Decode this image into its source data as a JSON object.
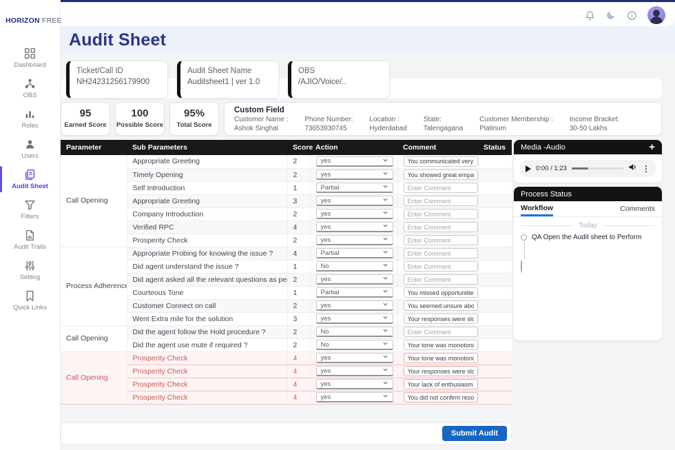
{
  "brand": {
    "bold": "HORIZON",
    "light": "FREE"
  },
  "page_title": "Audit Sheet",
  "sidebar": [
    {
      "label": "Dashboard",
      "icon": "dashboard-icon",
      "active": false
    },
    {
      "label": "OBS",
      "icon": "obs-icon",
      "active": false
    },
    {
      "label": "Roles",
      "icon": "roles-icon",
      "active": false
    },
    {
      "label": "Users",
      "icon": "users-icon",
      "active": false
    },
    {
      "label": "Audit Sheet",
      "icon": "audit-sheet-icon",
      "active": true
    },
    {
      "label": "Filters",
      "icon": "filters-icon",
      "active": false
    },
    {
      "label": "Audit Trails",
      "icon": "audit-trails-icon",
      "active": false
    },
    {
      "label": "Setting",
      "icon": "setting-icon",
      "active": false
    },
    {
      "label": "Quick Links",
      "icon": "quick-links-icon",
      "active": false
    }
  ],
  "topbar": {
    "icons": [
      "bell-icon",
      "dark-mode-icon",
      "info-icon"
    ]
  },
  "info_cards": [
    {
      "label": "Ticket/Call ID",
      "value": "NH24231256179900"
    },
    {
      "label": "Audit Sheet Name",
      "value": "Auditsheet1 | ver 1.0"
    },
    {
      "label": "OBS",
      "value": "/AJIO/Voice/.."
    }
  ],
  "score_cards": [
    {
      "value": "95",
      "label": "Earned Score"
    },
    {
      "value": "100",
      "label": "Possible Score"
    },
    {
      "value": "95%",
      "label": "Total Score"
    }
  ],
  "custom_field": {
    "title": "Custom Field",
    "fields": [
      {
        "label": "Customer Name :",
        "value": "Ashok Singhal"
      },
      {
        "label": "Phone Number:",
        "value": "73653930745"
      },
      {
        "label": "Location :",
        "value": "Hyderdabad"
      },
      {
        "label": "State:",
        "value": "Talengagana"
      },
      {
        "label": "Customer Membership :",
        "value": "Platinum"
      },
      {
        "label": "Income Bracket:",
        "value": "30-50 Lakhs"
      }
    ]
  },
  "table": {
    "columns": [
      "Parameter",
      "Sub Parameters",
      "Score",
      "Action",
      "Comment",
      "Status"
    ],
    "comment_placeholder": "Enter Comment",
    "groups": [
      {
        "parameter": "Call Opening",
        "danger": false,
        "rows": [
          {
            "sub": "Appropriate Greeting",
            "score": "2",
            "action": "yes",
            "comment": "You communicated very clea"
          },
          {
            "sub": "Timely Opening",
            "score": "2",
            "action": "yes",
            "comment": "You showed great empathy towarc"
          },
          {
            "sub": "Self Introduction",
            "score": "1",
            "action": "Partial",
            "comment": ""
          },
          {
            "sub": "Appropriate Greeting",
            "score": "3",
            "action": "yes",
            "comment": ""
          },
          {
            "sub": "Company Introduction",
            "score": "2",
            "action": "yes",
            "comment": ""
          },
          {
            "sub": "Verified RPC",
            "score": "4",
            "action": "yes",
            "comment": ""
          },
          {
            "sub": "Prosperity Check",
            "score": "2",
            "action": "yes",
            "comment": ""
          }
        ]
      },
      {
        "parameter": "Process Adherence",
        "danger": false,
        "rows": [
          {
            "sub": "Appropriate Probing for knowing the issue ?",
            "score": "4",
            "action": "Partial",
            "comment": ""
          },
          {
            "sub": "Did agent understand the issue ?",
            "score": "1",
            "action": "No",
            "comment": ""
          },
          {
            "sub": "Did agent asked all the relevant questions as per the issue ?",
            "score": "2",
            "action": "yes",
            "comment": ""
          },
          {
            "sub": "Courteous Tone",
            "score": "1",
            "action": "Partial",
            "comment": "You missed opportunities to show"
          },
          {
            "sub": "Customer Connect on call",
            "score": "2",
            "action": "yes",
            "comment": "You seemed unsure about some pr"
          },
          {
            "sub": "Went Extra mile for the solution",
            "score": "3",
            "action": "yes",
            "comment": "Your responses were slower than n"
          }
        ]
      },
      {
        "parameter": "Call Opening",
        "danger": false,
        "rows": [
          {
            "sub": "Did the agent follow the Hold procedure ?",
            "score": "2",
            "action": "No",
            "comment": ""
          },
          {
            "sub": "Did the agent use mute if required ?",
            "score": "2",
            "action": "No",
            "comment": "Your tone was monotonous.\""
          }
        ]
      },
      {
        "parameter": "Call Opening",
        "danger": true,
        "rows": [
          {
            "sub": "Prosperity Check",
            "score": "4",
            "action": "yes",
            "comment": "Your tone was monotonous.\""
          },
          {
            "sub": "Prosperity Check",
            "score": "4",
            "action": "yes",
            "comment": "Your responses were slower than n"
          },
          {
            "sub": "Prosperity Check",
            "score": "4",
            "action": "yes",
            "comment": "Your lack of enthusiasm was notice"
          },
          {
            "sub": "Prosperity Check",
            "score": "4",
            "action": "yes",
            "comment": "You did not confirm resolution witl"
          }
        ]
      }
    ]
  },
  "media": {
    "title": "Media -Audio",
    "add_label": "+",
    "time": "0:00 / 1:23"
  },
  "process_status": {
    "title": "Process Status",
    "tabs": [
      {
        "label": "Workflow",
        "active": true
      },
      {
        "label": "Comments",
        "active": false
      }
    ],
    "day_label": "Today",
    "timeline": [
      {
        "text": "QA Open the  Audit sheet to Perform"
      }
    ]
  },
  "footer": {
    "submit_label": "Submit Audit"
  },
  "colors": {
    "accent": "#5b4ff2",
    "navy": "#2b3588",
    "danger": "#cf5454",
    "submit_blue": "#1766c5",
    "tab_blue": "#1a73e8"
  }
}
